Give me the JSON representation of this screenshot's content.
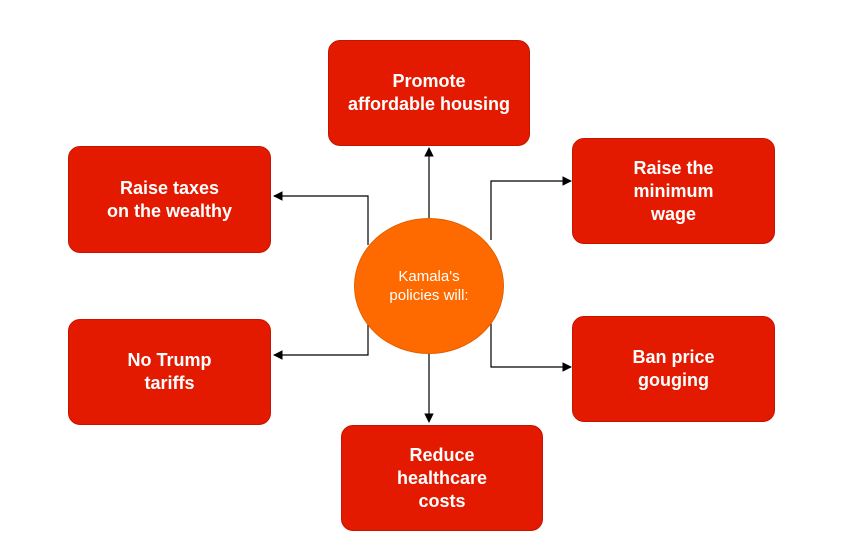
{
  "center": {
    "label": "Kamala's\npolicies will:"
  },
  "nodes": {
    "top": "Promote\naffordable housing",
    "upper_left": "Raise taxes\non the wealthy",
    "upper_right": "Raise the\nminimum\nwage",
    "lower_left": "No Trump\ntariffs",
    "lower_right": "Ban price\ngouging",
    "bottom": "Reduce\nhealthcare\ncosts"
  },
  "colors": {
    "node_fill": "#e41a00",
    "center_fill": "#ff6a00",
    "text": "#ffffff",
    "connector": "#000000"
  }
}
